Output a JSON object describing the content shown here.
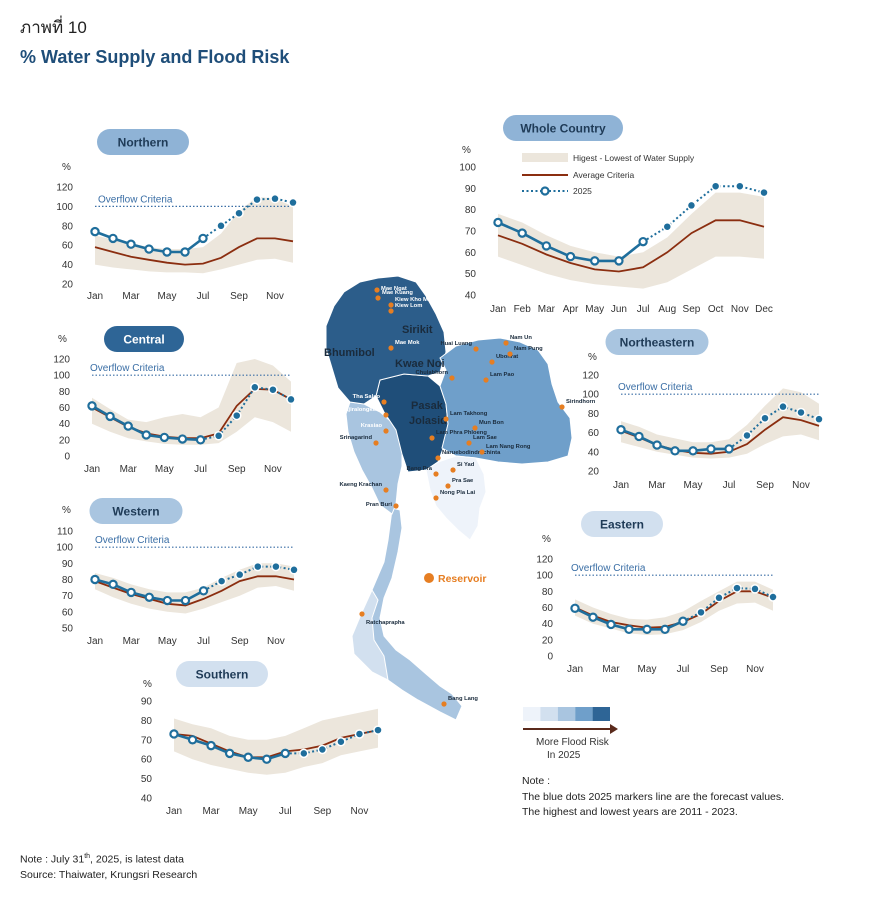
{
  "figure_label": "ภาพที่ 10",
  "title": "% Water Supply and Flood Risk",
  "legend": {
    "band": "Higest - Lowest of Water Supply",
    "average": "Average Criteria",
    "forecast": "2025"
  },
  "colors": {
    "band": "#ece6dc",
    "average": "#8b2e10",
    "forecast": "#1f6e9c",
    "overflow": "#3a6ea5",
    "pill_text": "#1f3b57",
    "reservoir": "#e67e22"
  },
  "risk_scale": {
    "colors": [
      "#eef3fa",
      "#d2e0ef",
      "#a9c5e0",
      "#6f9fca",
      "#2e6596"
    ],
    "label_line1": "More Flood Risk",
    "label_line2": "In 2025"
  },
  "map": {
    "reservoir_legend": "Reservoir",
    "region_labels": [
      "Sirikit",
      "Bhumibol",
      "Kwae Noi",
      "Pasak",
      "Jolasid"
    ],
    "reservoirs": [
      "Mae Ngat",
      "Mae Kuang",
      "Kiew Kho Ma",
      "Kiew Lom",
      "Mae Mok",
      "Huai Luang",
      "Nam Un",
      "Ubonrat",
      "Nam Pung",
      "Chulabhorn",
      "Lam Pao",
      "Sirindhorn",
      "Tha Salao",
      "Vajiralongkorn",
      "Krasiao",
      "Srinagarind",
      "Lam Takhong",
      "Mun Bon",
      "Lam Phra Phloeng",
      "Lam Sae",
      "Naruebodindrachinta",
      "Lam Nang Rong",
      "Bang Pra",
      "Si Yad",
      "Pra Sae",
      "Nong Pla Lai",
      "Kaeng Krachan",
      "Pran Buri",
      "Ratchaprapha",
      "Bang Lang"
    ]
  },
  "notes": {
    "heading": "Note :",
    "line1": "The blue dots 2025 markers line are the forecast values.",
    "line2": "The highest and lowest years are 2011 - 2023."
  },
  "footer": {
    "note_prefix": "Note : July 31",
    "note_sup": "th",
    "note_suffix": ", 2025,  is latest data",
    "source": "Source: Thaiwater, Krungsri Research"
  },
  "chart_data": [
    {
      "type": "line",
      "title": "Northern",
      "unit": "%",
      "overflow_label": "Overflow Criteria",
      "overflow_value": 100,
      "ylim": [
        20,
        120
      ],
      "yticks": [
        20,
        40,
        60,
        80,
        100,
        120
      ],
      "x": [
        "Jan",
        "Feb",
        "Mar",
        "Apr",
        "May",
        "Jun",
        "Jul",
        "Aug",
        "Sep",
        "Oct",
        "Nov",
        "Dec"
      ],
      "xticks": [
        "Jan",
        "Mar",
        "May",
        "Jul",
        "Sep",
        "Nov"
      ],
      "series": [
        {
          "name": "Higest - Lowest of Water Supply",
          "kind": "band",
          "high": [
            70,
            66,
            62,
            58,
            56,
            56,
            58,
            72,
            95,
            110,
            108,
            100
          ],
          "low": [
            40,
            37,
            35,
            33,
            32,
            32,
            31,
            35,
            40,
            45,
            46,
            42
          ]
        },
        {
          "name": "Average Criteria",
          "kind": "line",
          "values": [
            58,
            53,
            48,
            45,
            42,
            40,
            41,
            47,
            58,
            67,
            67,
            64
          ]
        },
        {
          "name": "2025",
          "kind": "forecast",
          "values": [
            74,
            67,
            61,
            56,
            53,
            53,
            67,
            80,
            93,
            107,
            108,
            104
          ]
        }
      ]
    },
    {
      "type": "line",
      "title": "Whole Country",
      "unit": "%",
      "overflow_label": "",
      "overflow_value": null,
      "ylim": [
        40,
        100
      ],
      "yticks": [
        40,
        50,
        60,
        70,
        80,
        90,
        100
      ],
      "x": [
        "Jan",
        "Feb",
        "Mar",
        "Apr",
        "May",
        "Jun",
        "Jul",
        "Aug",
        "Sep",
        "Oct",
        "Nov",
        "Dec"
      ],
      "xticks": [
        "Jan",
        "Feb",
        "Mar",
        "Apr",
        "May",
        "Jun",
        "Jul",
        "Aug",
        "Sep",
        "Oct",
        "Nov",
        "Dec"
      ],
      "series": [
        {
          "name": "Higest - Lowest of Water Supply",
          "kind": "band",
          "high": [
            78,
            74,
            68,
            63,
            60,
            58,
            60,
            67,
            78,
            88,
            88,
            86
          ],
          "low": [
            58,
            54,
            50,
            47,
            45,
            44,
            43,
            46,
            52,
            58,
            58,
            57
          ]
        },
        {
          "name": "Average Criteria",
          "kind": "line",
          "values": [
            68,
            64,
            59,
            55,
            52,
            51,
            53,
            60,
            69,
            75,
            75,
            72
          ]
        },
        {
          "name": "2025",
          "kind": "forecast",
          "values": [
            74,
            69,
            63,
            58,
            56,
            56,
            65,
            72,
            82,
            91,
            91,
            88
          ]
        }
      ]
    },
    {
      "type": "line",
      "title": "Central",
      "unit": "%",
      "overflow_label": "Overflow Criteria",
      "overflow_value": 100,
      "ylim": [
        0,
        120
      ],
      "yticks": [
        0,
        20,
        40,
        60,
        80,
        100,
        120
      ],
      "x": [
        "Jan",
        "Feb",
        "Mar",
        "Apr",
        "May",
        "Jun",
        "Jul",
        "Aug",
        "Sep",
        "Oct",
        "Nov",
        "Dec"
      ],
      "xticks": [
        "Jan",
        "Mar",
        "May",
        "Jul",
        "Sep",
        "Nov"
      ],
      "series": [
        {
          "name": "Higest - Lowest of Water Supply",
          "kind": "band",
          "high": [
            72,
            58,
            45,
            42,
            48,
            52,
            48,
            60,
            115,
            120,
            112,
            92
          ],
          "low": [
            40,
            30,
            22,
            18,
            15,
            14,
            14,
            16,
            30,
            48,
            42,
            30
          ]
        },
        {
          "name": "Average Criteria",
          "kind": "line",
          "values": [
            60,
            48,
            36,
            28,
            24,
            22,
            22,
            28,
            62,
            83,
            82,
            70
          ]
        },
        {
          "name": "2025",
          "kind": "forecast",
          "values": [
            62,
            49,
            37,
            26,
            23,
            21,
            20,
            25,
            50,
            85,
            82,
            70
          ]
        }
      ]
    },
    {
      "type": "line",
      "title": "Northeastern",
      "unit": "%",
      "overflow_label": "Overflow Criteria",
      "overflow_value": 100,
      "ylim": [
        20,
        120
      ],
      "yticks": [
        20,
        40,
        60,
        80,
        100,
        120
      ],
      "x": [
        "Jan",
        "Feb",
        "Mar",
        "Apr",
        "May",
        "Jun",
        "Jul",
        "Aug",
        "Sep",
        "Oct",
        "Nov",
        "Dec"
      ],
      "xticks": [
        "Jan",
        "Mar",
        "May",
        "Jul",
        "Sep",
        "Nov"
      ],
      "series": [
        {
          "name": "Higest - Lowest of Water Supply",
          "kind": "band",
          "high": [
            72,
            66,
            58,
            54,
            50,
            50,
            53,
            68,
            88,
            106,
            102,
            90
          ],
          "low": [
            50,
            45,
            40,
            37,
            34,
            33,
            34,
            38,
            48,
            56,
            58,
            52
          ]
        },
        {
          "name": "Average Criteria",
          "kind": "line",
          "values": [
            62,
            55,
            47,
            42,
            39,
            38,
            40,
            48,
            63,
            76,
            73,
            67
          ]
        },
        {
          "name": "2025",
          "kind": "forecast",
          "values": [
            63,
            56,
            47,
            41,
            41,
            43,
            43,
            57,
            75,
            87,
            81,
            74
          ]
        }
      ]
    },
    {
      "type": "line",
      "title": "Western",
      "unit": "%",
      "overflow_label": "Overflow Criteria",
      "overflow_value": 100,
      "ylim": [
        50,
        110
      ],
      "yticks": [
        50,
        60,
        70,
        80,
        90,
        100,
        110
      ],
      "x": [
        "Jan",
        "Feb",
        "Mar",
        "Apr",
        "May",
        "Jun",
        "Jul",
        "Aug",
        "Sep",
        "Oct",
        "Nov",
        "Dec"
      ],
      "xticks": [
        "Jan",
        "Mar",
        "May",
        "Jul",
        "Sep",
        "Nov"
      ],
      "series": [
        {
          "name": "Higest - Lowest of Water Supply",
          "kind": "band",
          "high": [
            84,
            81,
            77,
            74,
            72,
            72,
            75,
            81,
            86,
            90,
            90,
            88
          ],
          "low": [
            74,
            69,
            65,
            62,
            60,
            59,
            62,
            66,
            70,
            75,
            76,
            73
          ]
        },
        {
          "name": "Average Criteria",
          "kind": "line",
          "values": [
            79,
            75,
            71,
            68,
            65,
            64,
            68,
            73,
            79,
            82,
            82,
            80
          ]
        },
        {
          "name": "2025",
          "kind": "forecast",
          "values": [
            80,
            77,
            72,
            69,
            67,
            67,
            73,
            79,
            83,
            88,
            88,
            86
          ]
        }
      ]
    },
    {
      "type": "line",
      "title": "Eastern",
      "unit": "%",
      "overflow_label": "Overflow Criteria",
      "overflow_value": 100,
      "ylim": [
        0,
        120
      ],
      "yticks": [
        0,
        20,
        40,
        60,
        80,
        100,
        120
      ],
      "x": [
        "Jan",
        "Feb",
        "Mar",
        "Apr",
        "May",
        "Jun",
        "Jul",
        "Aug",
        "Sep",
        "Oct",
        "Nov",
        "Dec"
      ],
      "xticks": [
        "Jan",
        "Mar",
        "May",
        "Jul",
        "Sep",
        "Nov"
      ],
      "series": [
        {
          "name": "Higest - Lowest of Water Supply",
          "kind": "band",
          "high": [
            70,
            60,
            52,
            46,
            45,
            48,
            55,
            68,
            80,
            92,
            92,
            82
          ],
          "low": [
            50,
            40,
            34,
            28,
            26,
            27,
            32,
            42,
            56,
            65,
            66,
            56
          ]
        },
        {
          "name": "Average Criteria",
          "kind": "line",
          "values": [
            60,
            50,
            42,
            38,
            35,
            36,
            42,
            52,
            68,
            80,
            80,
            72
          ]
        },
        {
          "name": "2025",
          "kind": "forecast",
          "values": [
            59,
            48,
            39,
            33,
            33,
            33,
            43,
            54,
            72,
            84,
            83,
            73
          ]
        }
      ]
    },
    {
      "type": "line",
      "title": "Southern",
      "unit": "%",
      "overflow_label": "",
      "overflow_value": null,
      "ylim": [
        40,
        90
      ],
      "yticks": [
        40,
        50,
        60,
        70,
        80,
        90
      ],
      "x": [
        "Jan",
        "Feb",
        "Mar",
        "Apr",
        "May",
        "Jun",
        "Jul",
        "Aug",
        "Sep",
        "Oct",
        "Nov",
        "Dec"
      ],
      "xticks": [
        "Jan",
        "Mar",
        "May",
        "Jul",
        "Sep",
        "Nov"
      ],
      "series": [
        {
          "name": "Higest - Lowest of Water Supply",
          "kind": "band",
          "high": [
            81,
            78,
            76,
            72,
            70,
            70,
            72,
            76,
            80,
            82,
            84,
            86
          ],
          "low": [
            64,
            60,
            57,
            55,
            53,
            52,
            53,
            56,
            58,
            62,
            64,
            66
          ]
        },
        {
          "name": "Average Criteria",
          "kind": "line",
          "values": [
            73,
            72,
            68,
            64,
            61,
            61,
            64,
            65,
            67,
            71,
            73,
            75
          ]
        },
        {
          "name": "2025",
          "kind": "forecast",
          "values": [
            73,
            70,
            67,
            63,
            61,
            60,
            63,
            63,
            65,
            69,
            73,
            75
          ]
        }
      ]
    }
  ]
}
